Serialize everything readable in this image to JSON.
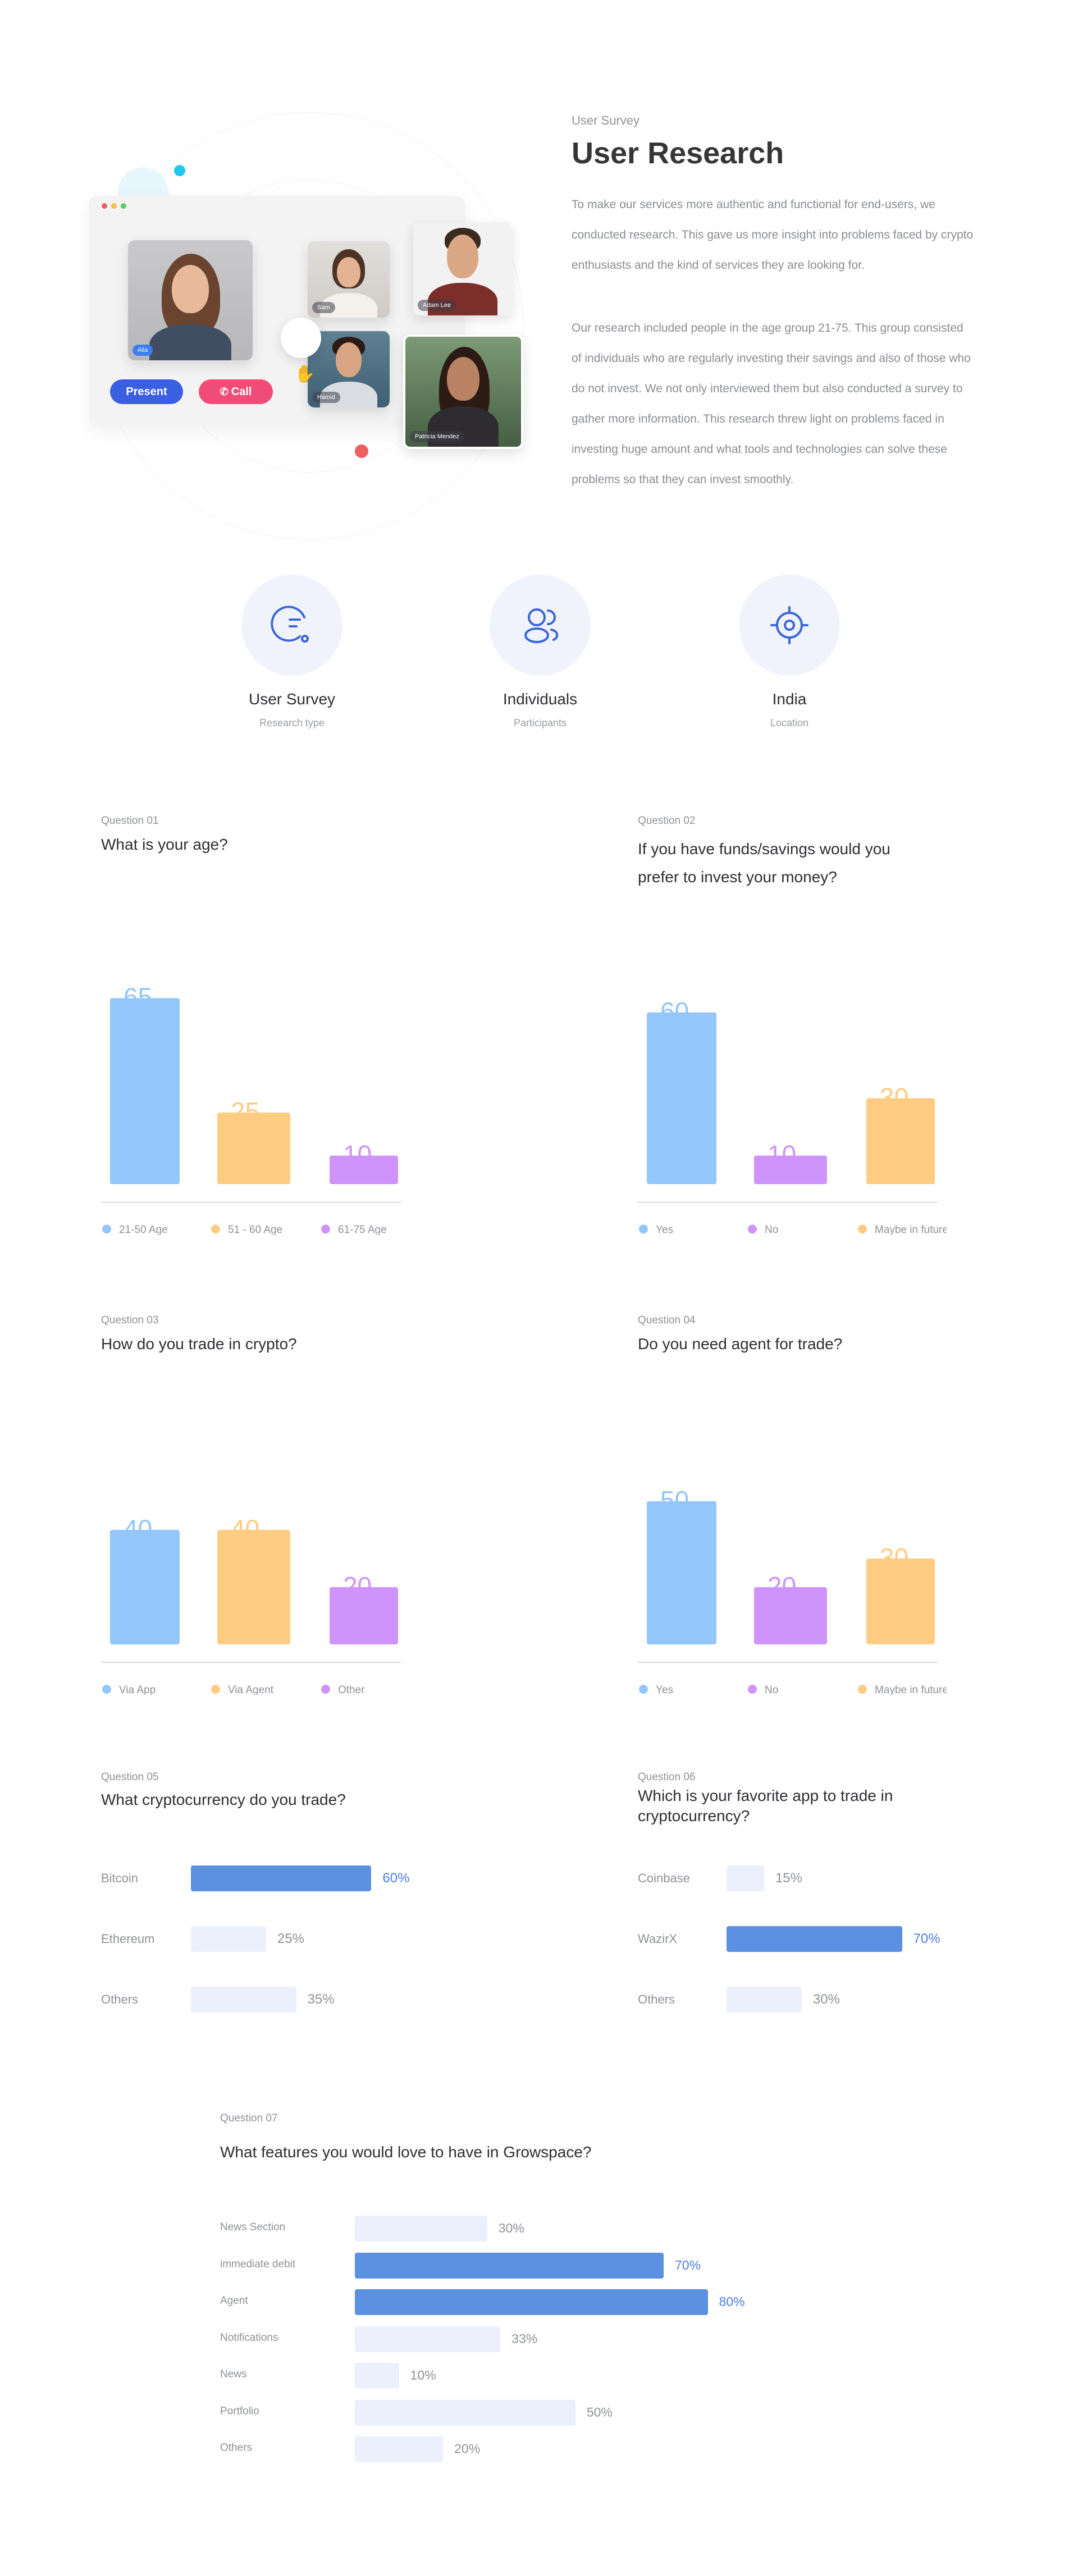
{
  "colors": {
    "blue": "#93c7fb",
    "orange": "#ffcc82",
    "purple": "#cf94fb",
    "accent": "#4e7de3",
    "track": "#eceffc",
    "fill_active": "#5c90e0"
  },
  "hero": {
    "overline": "User Survey",
    "title": "User Research",
    "paragraph_1": [
      "To make our services more authentic and functional for end-users, we",
      "conducted research. This gave us more insight into problems faced by crypto",
      "enthusiasts and the kind of services they are looking for."
    ],
    "paragraph_2": [
      "Our research included people in the age group 21-75. This group consisted",
      "of individuals who are regularly investing their savings and also of those who",
      "do not invest. We not only interviewed them but also conducted a survey to",
      "gather more information. This research threw light on problems faced in",
      "investing huge amount and what tools and technologies can solve these",
      "problems so that they can invest smoothly."
    ],
    "call_ui": {
      "present_label": "Present",
      "call_label": "Call",
      "tiles": [
        {
          "name": "Alia",
          "tag": "Alia"
        },
        {
          "name": "Sam",
          "tag": "Sam"
        },
        {
          "name": "Adam Lee",
          "tag": "Adam Lee"
        },
        {
          "name": "Hamid",
          "tag": "Hamid"
        },
        {
          "name": "Patricia Mendez",
          "tag": "Patricia Mendez"
        }
      ]
    }
  },
  "stats": [
    {
      "icon": "chart-refresh-icon",
      "title": "User Survey",
      "subtitle": "Research type"
    },
    {
      "icon": "users-icon",
      "title": "Individuals",
      "subtitle": "Participants"
    },
    {
      "icon": "target-icon",
      "title": "India",
      "subtitle": "Location"
    }
  ],
  "questions": {
    "q1": {
      "number": "Question 01",
      "title": [
        "What is your age?"
      ]
    },
    "q2": {
      "number": "Question 02",
      "title": [
        "If you have funds/savings would you",
        "prefer to invest your money?"
      ]
    },
    "q3": {
      "number": "Question 03",
      "title": [
        "How do you trade in crypto?"
      ]
    },
    "q4": {
      "number": "Question 04",
      "title": [
        "Do you need agent for trade?"
      ]
    },
    "q5": {
      "number": "Question 05",
      "title": [
        "What cryptocurrency do you trade?"
      ]
    },
    "q6": {
      "number": "Question 06",
      "title": [
        "Which is your favorite app to trade in",
        "cryptocurrency?"
      ]
    },
    "q7": {
      "number": "Question 07",
      "title": [
        "What features you would love to have in Growspace?"
      ]
    }
  },
  "chart_data": [
    {
      "id": "q1",
      "type": "bar",
      "ylim": [
        0,
        100
      ],
      "unit": "%",
      "categories": [
        "21-50 Age",
        "51 - 60 Age",
        "61-75 Age"
      ],
      "values": [
        65,
        25,
        10
      ],
      "colors": [
        "#93c7fb",
        "#ffcc82",
        "#cf94fb"
      ],
      "legend": [
        "21-50 Age",
        "51 - 60 Age",
        "61-75 Age"
      ],
      "legend_colors": [
        "#93c7fb",
        "#ffcc82",
        "#cf94fb"
      ]
    },
    {
      "id": "q2",
      "type": "bar",
      "ylim": [
        0,
        100
      ],
      "unit": "%",
      "categories": [
        "Yes",
        "No",
        "Maybe in future"
      ],
      "values": [
        60,
        10,
        30
      ],
      "colors": [
        "#93c7fb",
        "#cf94fb",
        "#ffcc82"
      ],
      "legend": [
        "Yes",
        "No",
        "Maybe in future"
      ],
      "legend_colors": [
        "#93c7fb",
        "#cf94fb",
        "#ffcc82"
      ]
    },
    {
      "id": "q3",
      "type": "bar",
      "ylim": [
        0,
        100
      ],
      "unit": "%",
      "categories": [
        "Via App",
        "Via Agent",
        "Other"
      ],
      "values": [
        40,
        40,
        20
      ],
      "colors": [
        "#93c7fb",
        "#ffcc82",
        "#cf94fb"
      ],
      "legend": [
        "Via App",
        "Via Agent",
        "Other"
      ],
      "legend_colors": [
        "#93c7fb",
        "#ffcc82",
        "#cf94fb"
      ]
    },
    {
      "id": "q4",
      "type": "bar",
      "ylim": [
        0,
        100
      ],
      "unit": "%",
      "categories": [
        "Yes",
        "No",
        "Maybe in future"
      ],
      "values": [
        50,
        20,
        30
      ],
      "colors": [
        "#93c7fb",
        "#cf94fb",
        "#ffcc82"
      ],
      "legend": [
        "Yes",
        "No",
        "Maybe in future"
      ],
      "legend_colors": [
        "#93c7fb",
        "#cf94fb",
        "#ffcc82"
      ]
    },
    {
      "id": "q5",
      "type": "bar",
      "orientation": "horizontal",
      "categories": [
        "Bitcoin",
        "Ethereum",
        "Others"
      ],
      "values": [
        60,
        25,
        35
      ],
      "labels": [
        "60%",
        "25%",
        "35%"
      ],
      "highlight": [
        true,
        false,
        false
      ]
    },
    {
      "id": "q6",
      "type": "bar",
      "orientation": "horizontal",
      "categories": [
        "Coinbase",
        "WazirX",
        "Others"
      ],
      "values": [
        15,
        70,
        30
      ],
      "labels": [
        "15%",
        "70%",
        "30%"
      ],
      "highlight": [
        false,
        true,
        false
      ]
    },
    {
      "id": "q7",
      "type": "bar",
      "orientation": "horizontal",
      "categories": [
        "News Section",
        "immediate debit",
        "Agent",
        "Notifications",
        "News",
        "Portfolio",
        "Others"
      ],
      "values": [
        30,
        70,
        80,
        33,
        10,
        50,
        20
      ],
      "labels": [
        "30%",
        "70%",
        "80%",
        "33%",
        "10%",
        "50%",
        "20%"
      ],
      "highlight": [
        false,
        true,
        true,
        false,
        false,
        false,
        false
      ]
    }
  ]
}
